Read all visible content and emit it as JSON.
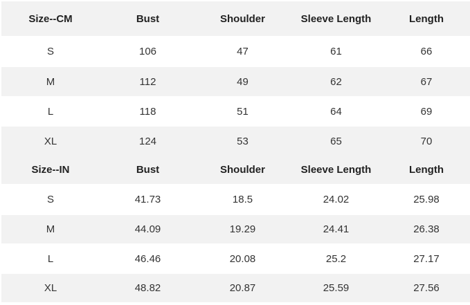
{
  "tables": [
    {
      "headers": [
        "Size--CM",
        "Bust",
        "Shoulder",
        "Sleeve Length",
        "Length"
      ],
      "rows": [
        [
          "S",
          "106",
          "47",
          "61",
          "66"
        ],
        [
          "M",
          "112",
          "49",
          "62",
          "67"
        ],
        [
          "L",
          "118",
          "51",
          "64",
          "69"
        ],
        [
          "XL",
          "124",
          "53",
          "65",
          "70"
        ]
      ]
    },
    {
      "headers": [
        "Size--IN",
        "Bust",
        "Shoulder",
        "Sleeve Length",
        "Length"
      ],
      "rows": [
        [
          "S",
          "41.73",
          "18.5",
          "24.02",
          "25.98"
        ],
        [
          "M",
          "44.09",
          "19.29",
          "24.41",
          "26.38"
        ],
        [
          "L",
          "46.46",
          "20.08",
          "25.2",
          "27.17"
        ],
        [
          "XL",
          "48.82",
          "20.87",
          "25.59",
          "27.56"
        ]
      ]
    }
  ],
  "colors": {
    "stripe": "#f2f2f2",
    "text": "#333333"
  }
}
